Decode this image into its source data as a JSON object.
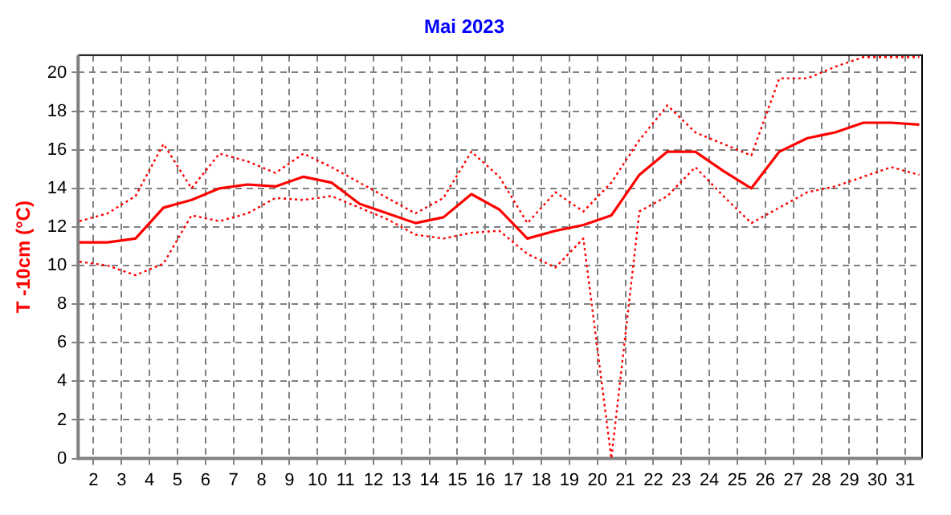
{
  "chart_data": {
    "type": "line",
    "title": "Mai 2023",
    "ylabel": "T -10cm (°C)",
    "x": [
      1.5,
      2.5,
      3.5,
      4.5,
      5.5,
      6.5,
      7.5,
      8.5,
      9.5,
      10.5,
      11.5,
      12.5,
      13.5,
      14.5,
      15.5,
      16.5,
      17.5,
      18.5,
      19.5,
      20.5,
      21.5,
      22.5,
      23.5,
      24.5,
      25.5,
      26.5,
      27.5,
      28.5,
      29.5,
      30.5,
      31.5
    ],
    "series": [
      {
        "color": "#ff0000",
        "line_style": "dotted",
        "values": [
          12.3,
          12.7,
          13.6,
          16.3,
          14.0,
          15.8,
          15.4,
          14.8,
          15.8,
          15.1,
          14.3,
          13.5,
          12.7,
          13.5,
          15.9,
          14.6,
          12.2,
          13.8,
          12.8,
          14.3,
          16.5,
          18.3,
          16.9,
          16.3,
          15.7,
          19.7,
          19.7,
          20.3,
          20.8,
          20.8,
          20.8
        ]
      },
      {
        "color": "#ff0000",
        "line_style": "solid",
        "values": [
          11.2,
          11.2,
          11.4,
          13.0,
          13.4,
          14.0,
          14.2,
          14.1,
          14.6,
          14.3,
          13.2,
          12.7,
          12.2,
          12.5,
          13.7,
          12.9,
          11.4,
          11.8,
          12.1,
          12.6,
          14.7,
          15.9,
          15.9,
          14.9,
          14.0,
          15.9,
          16.6,
          16.9,
          17.4,
          17.4,
          17.3
        ]
      },
      {
        "color": "#ff0000",
        "line_style": "dotted",
        "values": [
          10.2,
          10.0,
          9.5,
          10.1,
          12.6,
          12.3,
          12.7,
          13.5,
          13.4,
          13.6,
          13.0,
          12.4,
          11.6,
          11.4,
          11.7,
          11.8,
          10.6,
          9.9,
          11.4,
          0.0,
          12.8,
          13.6,
          15.1,
          13.6,
          12.2,
          13.0,
          13.8,
          14.1,
          14.6,
          15.1,
          14.7
        ]
      }
    ],
    "xlim": [
      1.45,
      31.6
    ],
    "xticks": [
      2,
      3,
      4,
      5,
      6,
      7,
      8,
      9,
      10,
      11,
      12,
      13,
      14,
      15,
      16,
      17,
      18,
      19,
      20,
      21,
      22,
      23,
      24,
      25,
      26,
      27,
      28,
      29,
      30,
      31
    ],
    "ylim": [
      0,
      20.9
    ],
    "yticks": [
      0,
      2,
      4,
      6,
      8,
      10,
      12,
      14,
      16,
      18,
      20
    ],
    "grid": true,
    "marker": "none"
  }
}
